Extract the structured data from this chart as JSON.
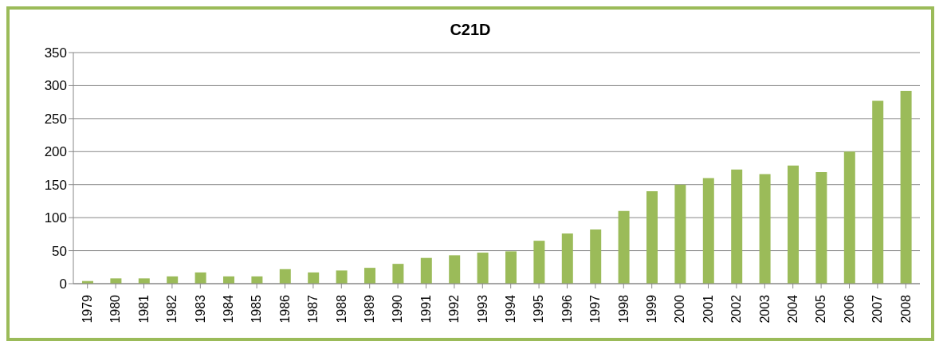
{
  "chart_data": {
    "type": "bar",
    "title": "C21D",
    "categories": [
      "1979",
      "1980",
      "1981",
      "1982",
      "1983",
      "1984",
      "1985",
      "1986",
      "1987",
      "1988",
      "1989",
      "1990",
      "1991",
      "1992",
      "1993",
      "1994",
      "1995",
      "1996",
      "1997",
      "1998",
      "1999",
      "2000",
      "2001",
      "2002",
      "2003",
      "2004",
      "2005",
      "2006",
      "2007",
      "2008"
    ],
    "values": [
      4,
      8,
      8,
      11,
      17,
      11,
      11,
      22,
      17,
      20,
      24,
      30,
      39,
      43,
      47,
      49,
      65,
      76,
      82,
      110,
      140,
      150,
      160,
      173,
      166,
      179,
      169,
      200,
      277,
      292
    ],
    "color": "#9bbb59",
    "ylim": [
      0,
      350
    ],
    "yticks": [
      0,
      50,
      100,
      150,
      200,
      250,
      300,
      350
    ],
    "grid": "y"
  }
}
